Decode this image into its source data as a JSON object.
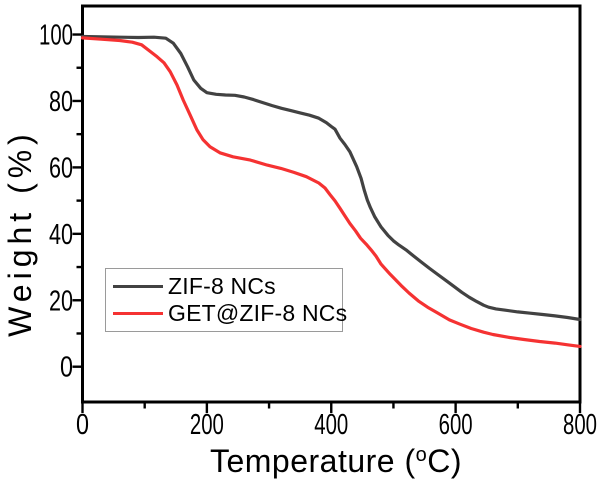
{
  "figure": {
    "background": "#ffffff",
    "frame_color": "#000000"
  },
  "chart_data": {
    "type": "line",
    "title": "",
    "xlabel": "Temperature (°C)",
    "xlabel_parts": {
      "pre": "Temperature (",
      "sup": "o",
      "post": "C)"
    },
    "ylabel": "Weight (%)",
    "xlim": [
      0,
      800
    ],
    "ylim": [
      -10.6,
      108.5
    ],
    "x_major_ticks": [
      0,
      200,
      400,
      600,
      800
    ],
    "x_minor_ticks": [
      100,
      300,
      500,
      700
    ],
    "y_major_ticks": [
      0,
      20,
      40,
      60,
      80,
      100
    ],
    "y_minor_ticks": [
      10,
      30,
      50,
      70,
      90
    ],
    "grid": false,
    "tick_style": "outward",
    "legend_position": "inside-lower-left",
    "series": [
      {
        "name": "ZIF-8 NCs",
        "color": "#424242",
        "points": [
          [
            0,
            99.4
          ],
          [
            30,
            99.3
          ],
          [
            60,
            99.2
          ],
          [
            90,
            99.1
          ],
          [
            115,
            99.2
          ],
          [
            134,
            98.9
          ],
          [
            146,
            97.4
          ],
          [
            158,
            94.3
          ],
          [
            169,
            90.3
          ],
          [
            179,
            86.3
          ],
          [
            190,
            83.8
          ],
          [
            200,
            82.5
          ],
          [
            215,
            82.0
          ],
          [
            230,
            81.8
          ],
          [
            245,
            81.7
          ],
          [
            260,
            81.2
          ],
          [
            275,
            80.4
          ],
          [
            290,
            79.5
          ],
          [
            305,
            78.6
          ],
          [
            320,
            77.8
          ],
          [
            335,
            77.1
          ],
          [
            350,
            76.4
          ],
          [
            365,
            75.7
          ],
          [
            380,
            74.8
          ],
          [
            392,
            73.5
          ],
          [
            400,
            72.3
          ],
          [
            406,
            71.5
          ],
          [
            414,
            68.8
          ],
          [
            422,
            66.9
          ],
          [
            430,
            64.7
          ],
          [
            441,
            60.2
          ],
          [
            448,
            56.7
          ],
          [
            453,
            53.2
          ],
          [
            458,
            50.2
          ],
          [
            463,
            47.9
          ],
          [
            470,
            45.1
          ],
          [
            480,
            42.1
          ],
          [
            491,
            39.6
          ],
          [
            500,
            37.9
          ],
          [
            509,
            36.6
          ],
          [
            520,
            35.2
          ],
          [
            532,
            33.4
          ],
          [
            545,
            31.5
          ],
          [
            558,
            29.6
          ],
          [
            571,
            27.8
          ],
          [
            584,
            26.0
          ],
          [
            597,
            24.2
          ],
          [
            610,
            22.4
          ],
          [
            622,
            20.9
          ],
          [
            634,
            19.6
          ],
          [
            645,
            18.5
          ],
          [
            653,
            17.9
          ],
          [
            665,
            17.4
          ],
          [
            680,
            17.0
          ],
          [
            700,
            16.5
          ],
          [
            720,
            16.1
          ],
          [
            740,
            15.7
          ],
          [
            760,
            15.3
          ],
          [
            780,
            14.8
          ],
          [
            800,
            14.2
          ]
        ]
      },
      {
        "name": "GET@ZIF-8 NCs",
        "color": "#f53232",
        "points": [
          [
            0,
            99.0
          ],
          [
            30,
            98.6
          ],
          [
            60,
            98.2
          ],
          [
            80,
            97.7
          ],
          [
            95,
            96.9
          ],
          [
            109,
            94.9
          ],
          [
            120,
            93.3
          ],
          [
            131,
            91.5
          ],
          [
            141,
            88.8
          ],
          [
            152,
            84.8
          ],
          [
            162,
            80.3
          ],
          [
            173,
            75.8
          ],
          [
            184,
            71.3
          ],
          [
            194,
            68.3
          ],
          [
            205,
            66.2
          ],
          [
            221,
            64.4
          ],
          [
            242,
            63.2
          ],
          [
            270,
            62.2
          ],
          [
            297,
            60.7
          ],
          [
            319,
            59.7
          ],
          [
            340,
            58.5
          ],
          [
            360,
            57.2
          ],
          [
            380,
            55.3
          ],
          [
            390,
            53.8
          ],
          [
            398,
            51.8
          ],
          [
            406,
            49.9
          ],
          [
            414,
            47.7
          ],
          [
            422,
            45.4
          ],
          [
            430,
            43.1
          ],
          [
            439,
            40.9
          ],
          [
            447,
            38.7
          ],
          [
            456,
            36.9
          ],
          [
            464,
            35.2
          ],
          [
            472,
            33.3
          ],
          [
            480,
            30.9
          ],
          [
            495,
            27.8
          ],
          [
            512,
            24.5
          ],
          [
            525,
            22.2
          ],
          [
            540,
            19.8
          ],
          [
            555,
            17.9
          ],
          [
            570,
            16.3
          ],
          [
            590,
            14.1
          ],
          [
            607,
            12.8
          ],
          [
            625,
            11.5
          ],
          [
            645,
            10.4
          ],
          [
            660,
            9.7
          ],
          [
            687,
            8.8
          ],
          [
            710,
            8.2
          ],
          [
            735,
            7.6
          ],
          [
            760,
            7.1
          ],
          [
            780,
            6.6
          ],
          [
            800,
            6.1
          ]
        ]
      }
    ]
  }
}
